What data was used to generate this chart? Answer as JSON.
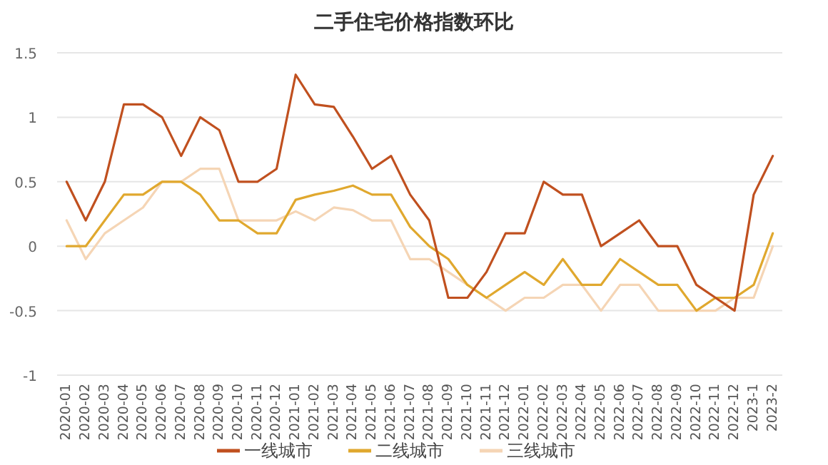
{
  "chart_data": {
    "type": "line",
    "title": "二手住宅价格指数环比",
    "categories": [
      "2020-01",
      "2020-02",
      "2020-03",
      "2020-04",
      "2020-05",
      "2020-06",
      "2020-07",
      "2020-08",
      "2020-09",
      "2020-10",
      "2020-11",
      "2020-12",
      "2021-01",
      "2021-02",
      "2021-03",
      "2021-04",
      "2021-05",
      "2021-06",
      "2021-07",
      "2021-08",
      "2021-09",
      "2021-10",
      "2021-11",
      "2021-12",
      "2022-01",
      "2022-02",
      "2022-03",
      "2022-04",
      "2022-05",
      "2022-06",
      "2022-07",
      "2022-08",
      "2022-09",
      "2022-10",
      "2022-11",
      "2022-12",
      "2023-1",
      "2023-2"
    ],
    "series": [
      {
        "name": "一线城市",
        "color": "#c0501f",
        "values": [
          0.5,
          0.2,
          0.5,
          1.1,
          1.1,
          1.0,
          0.7,
          1.0,
          0.9,
          0.5,
          0.5,
          0.6,
          1.33,
          1.1,
          1.08,
          0.85,
          0.6,
          0.7,
          0.4,
          0.2,
          -0.4,
          -0.4,
          -0.2,
          0.1,
          0.1,
          0.5,
          0.4,
          0.4,
          0,
          0.1,
          0.2,
          0,
          0,
          -0.3,
          -0.4,
          -0.5,
          0.4,
          0.7
        ]
      },
      {
        "name": "二线城市",
        "color": "#e0a82e",
        "values": [
          0,
          0,
          0.2,
          0.4,
          0.4,
          0.5,
          0.5,
          0.4,
          0.2,
          0.2,
          0.1,
          0.1,
          0.36,
          0.4,
          0.43,
          0.47,
          0.4,
          0.4,
          0.15,
          0,
          -0.1,
          -0.3,
          -0.4,
          -0.3,
          -0.2,
          -0.3,
          -0.1,
          -0.3,
          -0.3,
          -0.1,
          -0.2,
          -0.3,
          -0.3,
          -0.5,
          -0.4,
          -0.4,
          -0.3,
          0.1
        ]
      },
      {
        "name": "三线城市",
        "color": "#f5d5b5",
        "values": [
          0.2,
          -0.1,
          0.1,
          0.2,
          0.3,
          0.5,
          0.5,
          0.6,
          0.6,
          0.2,
          0.2,
          0.2,
          0.27,
          0.2,
          0.3,
          0.28,
          0.2,
          0.2,
          -0.1,
          -0.1,
          -0.2,
          -0.3,
          -0.4,
          -0.5,
          -0.4,
          -0.4,
          -0.3,
          -0.3,
          -0.5,
          -0.3,
          -0.3,
          -0.5,
          -0.5,
          -0.5,
          -0.5,
          -0.4,
          -0.4,
          0
        ]
      }
    ],
    "ylim": [
      -1,
      1.5
    ],
    "yticks": [
      -1,
      -0.5,
      0,
      0.5,
      1,
      1.5
    ],
    "grid": "y",
    "legend": "bottom",
    "marker": "none",
    "line_style": "solid"
  }
}
